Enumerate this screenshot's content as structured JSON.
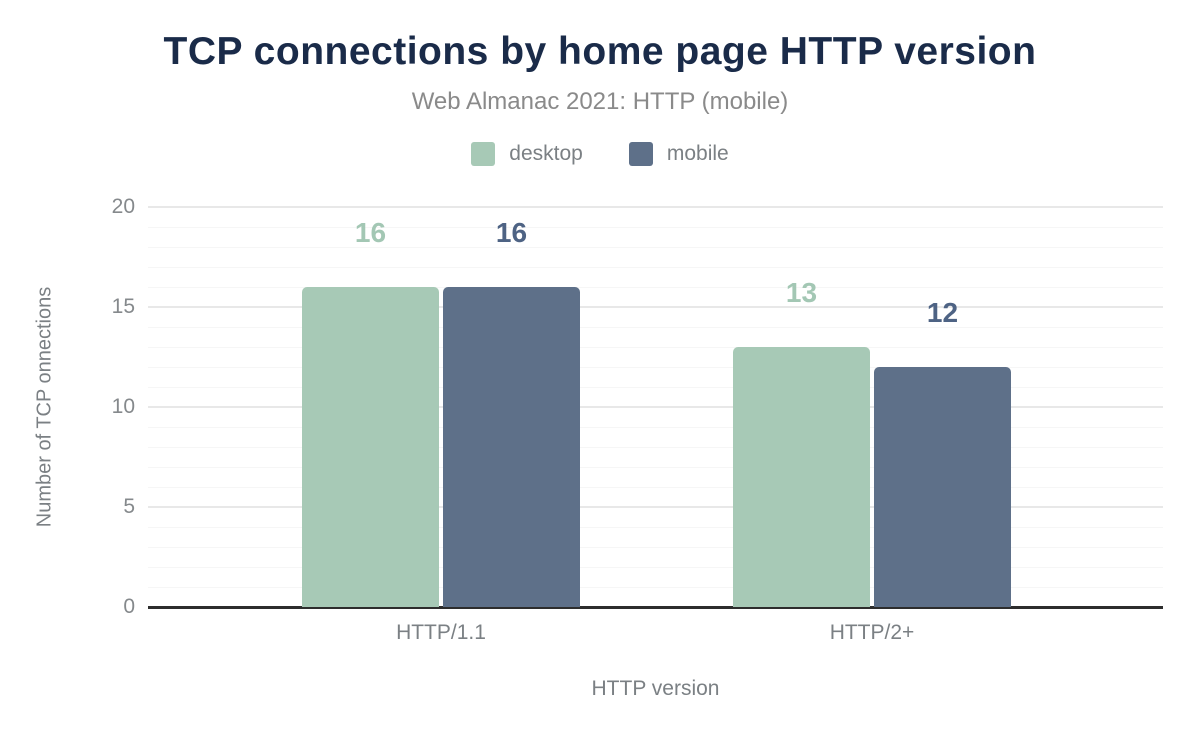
{
  "chart": {
    "title": "TCP connections by home page HTTP version",
    "subtitle": "Web Almanac 2021: HTTP (mobile)"
  },
  "chart_data": {
    "type": "bar",
    "categories": [
      "HTTP/1.1",
      "HTTP/2+"
    ],
    "series": [
      {
        "name": "desktop",
        "values": [
          16,
          13
        ],
        "color": "#a7c9b6",
        "label_color": "#a3c7b4"
      },
      {
        "name": "mobile",
        "values": [
          16,
          12
        ],
        "color": "#5e7089",
        "label_color": "#4e6384"
      }
    ],
    "title": "TCP connections by home page HTTP version",
    "subtitle": "Web Almanac 2021: HTTP (mobile)",
    "xlabel": "HTTP version",
    "ylabel": "Number of TCP onnections",
    "ylim": [
      0,
      20
    ],
    "yticks": [
      0,
      5,
      10,
      15,
      20
    ],
    "minor_grid_unit": 1,
    "major_grid_unit": 5,
    "grid": "horizontal",
    "legend_position": "top",
    "data_labels": true
  },
  "colors": {
    "title": "#1a2b49",
    "subtitle": "#8a8a8a",
    "axis_text": "#85898c",
    "axis_title": "#7b8084",
    "baseline": "#2d2d2d",
    "major_grid": "#e8e8e8",
    "minor_grid": "#f6f6f6",
    "background": "#ffffff"
  }
}
